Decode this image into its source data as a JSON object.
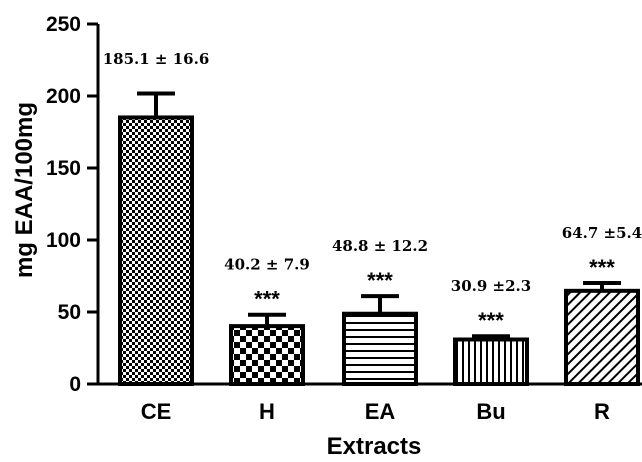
{
  "chart_data": {
    "type": "bar",
    "categories": [
      "CE",
      "H",
      "EA",
      "Bu",
      "R"
    ],
    "values": [
      185.1,
      40.2,
      48.8,
      30.9,
      64.7
    ],
    "errors": [
      16.6,
      7.9,
      12.2,
      2.3,
      5.4
    ],
    "value_labels": [
      "185.1 ± 16.6",
      "40.2 ± 7.9",
      "48.8 ± 12.2",
      "30.9 ±2.3",
      "64.7 ±5.4"
    ],
    "significance": [
      "",
      "***",
      "***",
      "***",
      "***"
    ],
    "patterns": [
      "checker-fine",
      "checker-coarse",
      "horizontal-lines",
      "vertical-lines",
      "diagonal-lines"
    ],
    "xlabel": "Extracts",
    "ylabel": "mg EAA/100mg",
    "ylim": [
      0,
      250
    ],
    "yticks": [
      0,
      50,
      100,
      150,
      200,
      250
    ],
    "grid": false,
    "legend": "none"
  }
}
